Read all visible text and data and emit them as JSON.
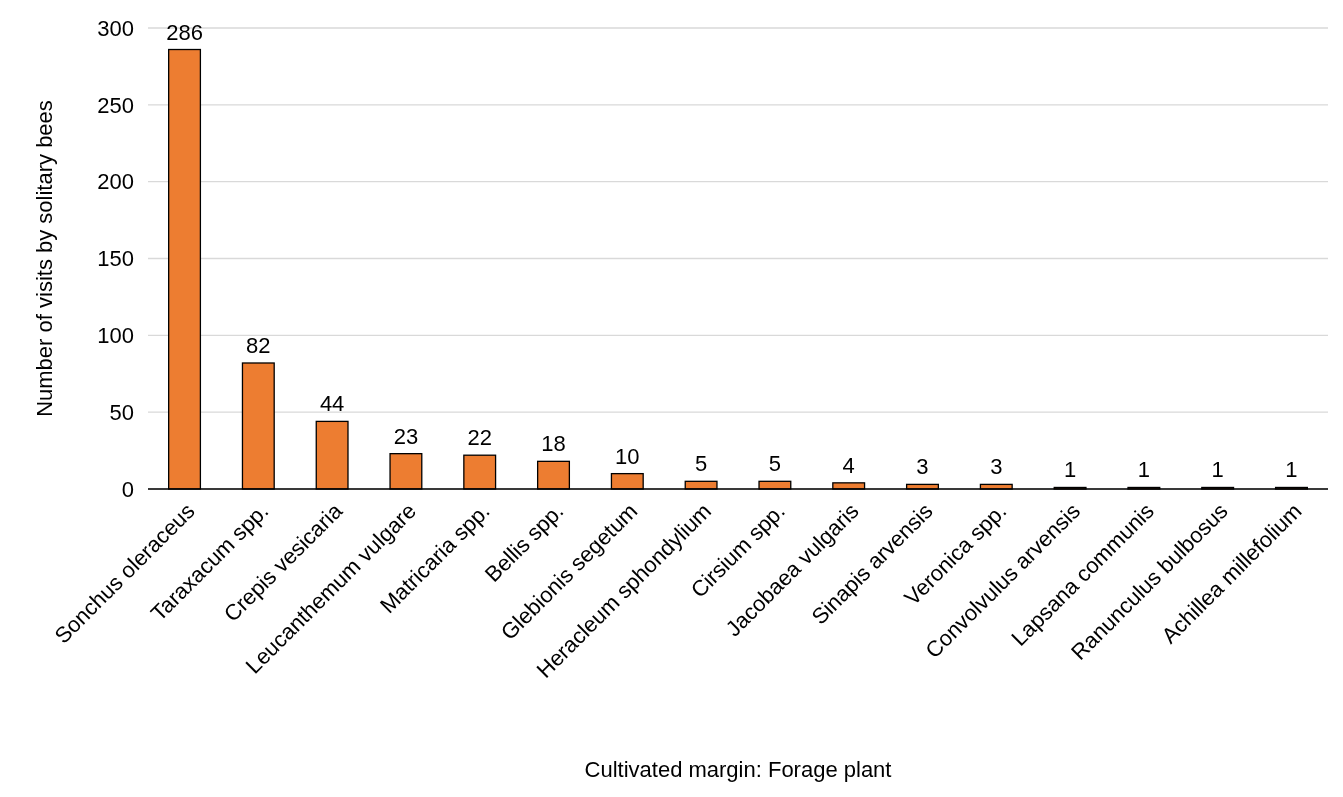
{
  "chart_data": {
    "type": "bar",
    "xlabel": "Cultivated margin: Forage plant",
    "ylabel": "Number of visits by solitary bees",
    "categories": [
      "Sonchus oleraceus",
      "Taraxacum spp.",
      "Crepis vesicaria",
      "Leucanthemum vulgare",
      "Matricaria spp.",
      "Bellis spp.",
      "Glebionis segetum",
      "Heracleum sphondylium",
      "Cirsium spp.",
      "Jacobaea vulgaris",
      "Sinapis arvensis",
      "Veronica spp.",
      "Convolvulus arvensis",
      "Lapsana communis",
      "Ranunculus bulbosus",
      "Achillea millefolium"
    ],
    "values": [
      286,
      82,
      44,
      23,
      22,
      18,
      10,
      5,
      5,
      4,
      3,
      3,
      1,
      1,
      1,
      1
    ],
    "color": "#ed7d31",
    "ylim": [
      0,
      300
    ],
    "yticks": [
      0,
      50,
      100,
      150,
      200,
      250,
      300
    ],
    "grid": "y",
    "data_labels": true
  }
}
